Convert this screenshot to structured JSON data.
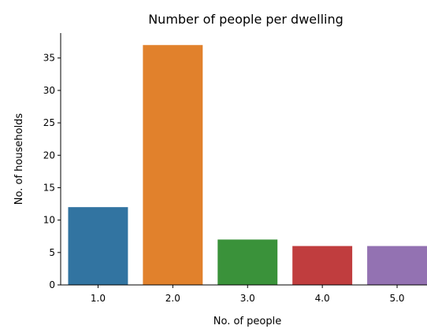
{
  "chart_data": {
    "type": "bar",
    "title": "Number of people per dwelling",
    "xlabel": "No. of people",
    "ylabel": "No. of households",
    "categories": [
      "1.0",
      "2.0",
      "3.0",
      "4.0",
      "5.0"
    ],
    "values": [
      12,
      37,
      7,
      6,
      6
    ],
    "colors": [
      "#3274a1",
      "#e1812c",
      "#3a923a",
      "#c03d3e",
      "#9372b2"
    ],
    "ylim": [
      0,
      38.85
    ],
    "yticks": [
      "0",
      "5",
      "10",
      "15",
      "20",
      "25",
      "30",
      "35"
    ],
    "grid": false,
    "legend": "none"
  }
}
